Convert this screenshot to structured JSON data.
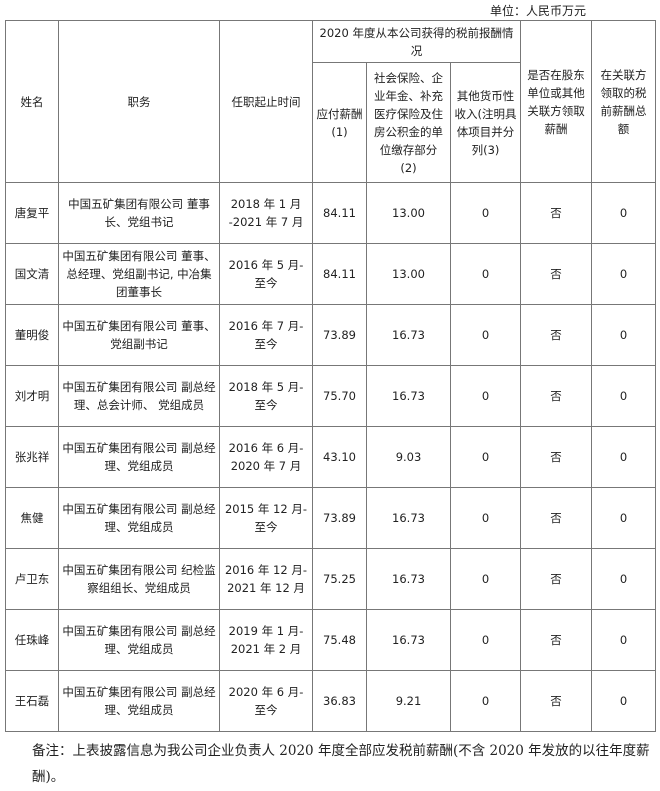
{
  "unit": "单位：人民币万元",
  "headers": {
    "name": "姓名",
    "role": "职务",
    "term": "任职起止时间",
    "group": "2020 年度从本公司获得的税前报酬情况",
    "pay": "应付薪酬(1)",
    "social": "社会保险、企业年金、补充医疗保险及住房公积金的单位缴存部分 (2)",
    "other": "其他货币性收入(注明具体项目并分列(3)",
    "shareholder": "是否在股东单位或其他关联方领取薪酬",
    "related": "在关联方领取的税前薪酬总额"
  },
  "rows": [
    {
      "name": "唐复平",
      "role": "中国五矿集团有限公司 董事长、党组书记",
      "term": "2018 年 1 月 -2021 年 7 月",
      "pay": "84.11",
      "social": "13.00",
      "other": "0",
      "shareholder": "否",
      "related": "0"
    },
    {
      "name": "国文清",
      "role": "中国五矿集团有限公司 董事、总经理、党组副书记, 中冶集团董事长",
      "term": "2016 年 5 月- 至今",
      "pay": "84.11",
      "social": "13.00",
      "other": "0",
      "shareholder": "否",
      "related": "0"
    },
    {
      "name": "董明俊",
      "role": "中国五矿集团有限公司 董事、党组副书记",
      "term": "2016 年 7 月- 至今",
      "pay": "73.89",
      "social": "16.73",
      "other": "0",
      "shareholder": "否",
      "related": "0"
    },
    {
      "name": "刘才明",
      "role": "中国五矿集团有限公司 副总经理、总会计师、 党组成员",
      "term": "2018 年 5 月- 至今",
      "pay": "75.70",
      "social": "16.73",
      "other": "0",
      "shareholder": "否",
      "related": "0"
    },
    {
      "name": "张兆祥",
      "role": "中国五矿集团有限公司 副总经理、党组成员",
      "term": "2016 年 6 月- 2020 年 7 月",
      "pay": "43.10",
      "social": "9.03",
      "other": "0",
      "shareholder": "否",
      "related": "0"
    },
    {
      "name": "焦健",
      "role": "中国五矿集团有限公司 副总经理、党组成员",
      "term": "2015 年 12 月- 至今",
      "pay": "73.89",
      "social": "16.73",
      "other": "0",
      "shareholder": "否",
      "related": "0"
    },
    {
      "name": "卢卫东",
      "role": "中国五矿集团有限公司 纪检监察组组长、党组成员",
      "term": "2016 年 12 月- 2021 年 12 月",
      "pay": "75.25",
      "social": "16.73",
      "other": "0",
      "shareholder": "否",
      "related": "0"
    },
    {
      "name": "任珠峰",
      "role": "中国五矿集团有限公司 副总经理、党组成员",
      "term": "2019 年 1 月- 2021 年 2 月",
      "pay": "75.48",
      "social": "16.73",
      "other": "0",
      "shareholder": "否",
      "related": "0"
    },
    {
      "name": "王石磊",
      "role": "中国五矿集团有限公司 副总经理、党组成员",
      "term": "2020 年 6 月- 至今",
      "pay": "36.83",
      "social": "9.21",
      "other": "0",
      "shareholder": "否",
      "related": "0"
    }
  ],
  "note": "备注：上表披露信息为我公司企业负责人 2020 年度全部应发税前薪酬(不含 2020 年发放的以往年度薪酬)。"
}
